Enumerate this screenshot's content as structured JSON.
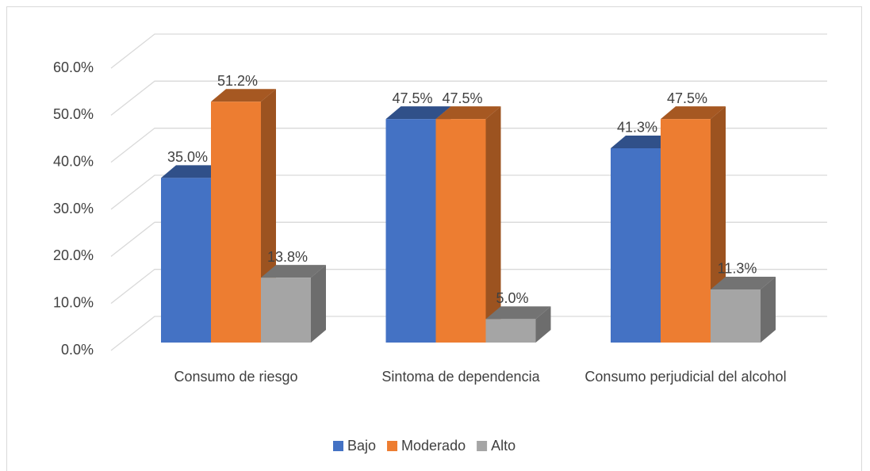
{
  "chart_data": {
    "type": "bar3d",
    "categories": [
      "Consumo de riesgo",
      "Sintoma de dependencia",
      "Consumo perjudicial del alcohol"
    ],
    "series": [
      {
        "name": "Bajo",
        "color": "#4472c4",
        "values": [
          35.0,
          47.5,
          41.3
        ],
        "value_labels": [
          "35.0%",
          "47.5%",
          "41.3%"
        ]
      },
      {
        "name": "Moderado",
        "color": "#ed7d31",
        "values": [
          51.2,
          47.5,
          47.5
        ],
        "value_labels": [
          "51.2%",
          "47.5%",
          "47.5%"
        ]
      },
      {
        "name": "Alto",
        "color": "#a5a5a5",
        "values": [
          13.8,
          5.0,
          11.3
        ],
        "value_labels": [
          "13.8%",
          "5.0%",
          "11.3%"
        ]
      }
    ],
    "ylim": [
      0,
      60
    ],
    "yticks": [
      {
        "value": 0,
        "label": "0.0%"
      },
      {
        "value": 10,
        "label": "10.0%"
      },
      {
        "value": 20,
        "label": "20.0%"
      },
      {
        "value": 30,
        "label": "30.0%"
      },
      {
        "value": 40,
        "label": "40.0%"
      },
      {
        "value": 50,
        "label": "50.0%"
      },
      {
        "value": 60,
        "label": "60.0%"
      }
    ],
    "grid": true,
    "legend": "bottom"
  }
}
